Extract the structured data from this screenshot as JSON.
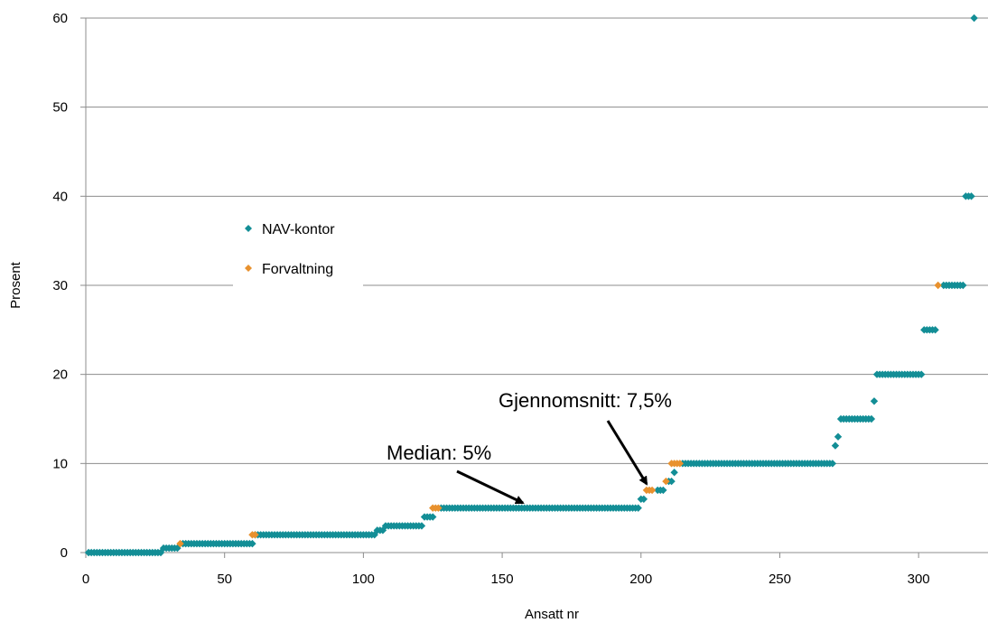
{
  "chart_data": {
    "type": "scatter",
    "title": "",
    "xlabel": "Ansatt nr",
    "ylabel": "Prosent",
    "xlim": [
      0,
      325
    ],
    "ylim": [
      0,
      60
    ],
    "x_ticks": [
      0,
      50,
      100,
      150,
      200,
      250,
      300
    ],
    "y_ticks": [
      0,
      10,
      20,
      30,
      40,
      50,
      60
    ],
    "grid": "horizontal",
    "legend_position": "center-left",
    "colors": {
      "NAV-kontor": "#138e96",
      "Forvaltning": "#e8912e"
    },
    "series": [
      {
        "name": "NAV-kontor",
        "color": "#138e96",
        "runs": [
          {
            "x_from": 1,
            "x_to": 27,
            "y": 0
          },
          {
            "x_from": 28,
            "x_to": 33,
            "y": 0.5
          },
          {
            "x_from": 35,
            "x_to": 60,
            "y": 1
          },
          {
            "x_from": 61,
            "x_to": 104,
            "y": 2
          },
          {
            "x_from": 105,
            "x_to": 107,
            "y": 2.5
          },
          {
            "x_from": 108,
            "x_to": 121,
            "y": 3
          },
          {
            "x_from": 122,
            "x_to": 125,
            "y": 4
          },
          {
            "x_from": 128,
            "x_to": 199,
            "y": 5
          },
          {
            "x_from": 200,
            "x_to": 201,
            "y": 6
          },
          {
            "x_from": 206,
            "x_to": 208,
            "y": 7
          },
          {
            "x_from": 210,
            "x_to": 211,
            "y": 8
          },
          {
            "x_from": 212,
            "x_to": 212,
            "y": 9
          },
          {
            "x_from": 215,
            "x_to": 269,
            "y": 10
          },
          {
            "x_from": 270,
            "x_to": 270,
            "y": 12
          },
          {
            "x_from": 271,
            "x_to": 271,
            "y": 13
          },
          {
            "x_from": 272,
            "x_to": 283,
            "y": 15
          },
          {
            "x_from": 284,
            "x_to": 284,
            "y": 17
          },
          {
            "x_from": 285,
            "x_to": 301,
            "y": 20
          },
          {
            "x_from": 302,
            "x_to": 306,
            "y": 25
          },
          {
            "x_from": 309,
            "x_to": 316,
            "y": 30
          },
          {
            "x_from": 317,
            "x_to": 319,
            "y": 40
          },
          {
            "x_from": 320,
            "x_to": 320,
            "y": 60
          }
        ]
      },
      {
        "name": "Forvaltning",
        "color": "#e8912e",
        "points": [
          [
            34,
            1
          ],
          [
            60,
            2
          ],
          [
            61,
            2
          ],
          [
            125,
            5
          ],
          [
            126,
            5
          ],
          [
            127,
            5
          ],
          [
            202,
            7
          ],
          [
            203,
            7
          ],
          [
            204,
            7
          ],
          [
            209,
            8
          ],
          [
            211,
            10
          ],
          [
            212,
            10
          ],
          [
            213,
            10
          ],
          [
            214,
            10
          ],
          [
            307,
            30
          ]
        ]
      }
    ],
    "annotations": [
      {
        "text": "Median: 5%",
        "arrow_to": [
          160,
          5
        ]
      },
      {
        "text": "Gjennomsnitt: 7,5%",
        "arrow_to": [
          204,
          7.5
        ]
      }
    ]
  }
}
